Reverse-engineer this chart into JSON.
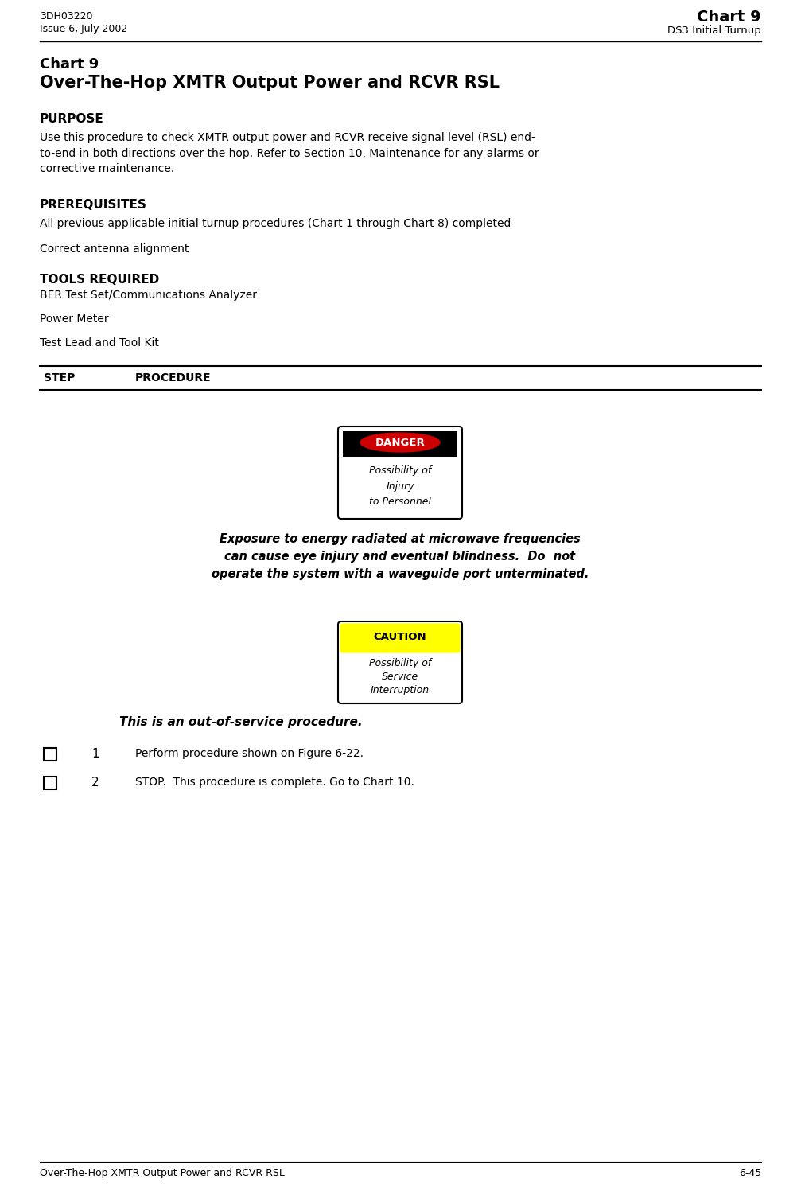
{
  "header_left_line1": "3DH03220",
  "header_left_line2": "Issue 6, July 2002",
  "header_right_line1": "Chart 9",
  "header_right_line2": "DS3 Initial Turnup",
  "title_line1": "Chart 9",
  "title_line2": "Over-The-Hop XMTR Output Power and RCVR RSL",
  "section_purpose_heading": "PURPOSE",
  "section_purpose_text": "Use this procedure to check XMTR output power and RCVR receive signal level (RSL) end-\nto-end in both directions over the hop. Refer to Section 10, Maintenance for any alarms or\ncorrective maintenance.",
  "section_prereq_heading": "PREREQUISITES",
  "section_prereq_item1": "All previous applicable initial turnup procedures (Chart 1 through Chart 8) completed",
  "section_prereq_item2": "Correct antenna alignment",
  "section_tools_heading": "TOOLS REQUIRED",
  "section_tools_item1": "BER Test Set/Communications Analyzer",
  "section_tools_item2": "Power Meter",
  "section_tools_item3": "Test Lead and Tool Kit",
  "table_col1": "STEP",
  "table_col2": "PROCEDURE",
  "danger_label": "DANGER",
  "danger_sub1": "Possibility of",
  "danger_sub2": "Injury",
  "danger_sub3": "to Personnel",
  "danger_text_line1": "Exposure to energy radiated at microwave frequencies",
  "danger_text_line2": "can cause eye injury and eventual blindness.  Do  not",
  "danger_text_line3": "operate the system with a waveguide port unterminated.",
  "caution_label": "CAUTION",
  "caution_sub1": "Possibility of",
  "caution_sub2": "Service",
  "caution_sub3": "Interruption",
  "caution_text": "This is an out-of-service procedure.",
  "step1_num": "1",
  "step1_text": "Perform procedure shown on Figure 6‑22.",
  "step2_num": "2",
  "step2_text": "STOP.  This procedure is complete. Go to Chart 10.",
  "footer_left": "Over-The-Hop XMTR Output Power and RCVR RSL",
  "footer_right": "6-45",
  "bg_color": "#ffffff",
  "text_color": "#000000",
  "danger_bg": "#cc0000",
  "danger_text_color": "#ffffff",
  "caution_bg": "#ffff00",
  "caution_text_color": "#000000",
  "line_color": "#000000"
}
